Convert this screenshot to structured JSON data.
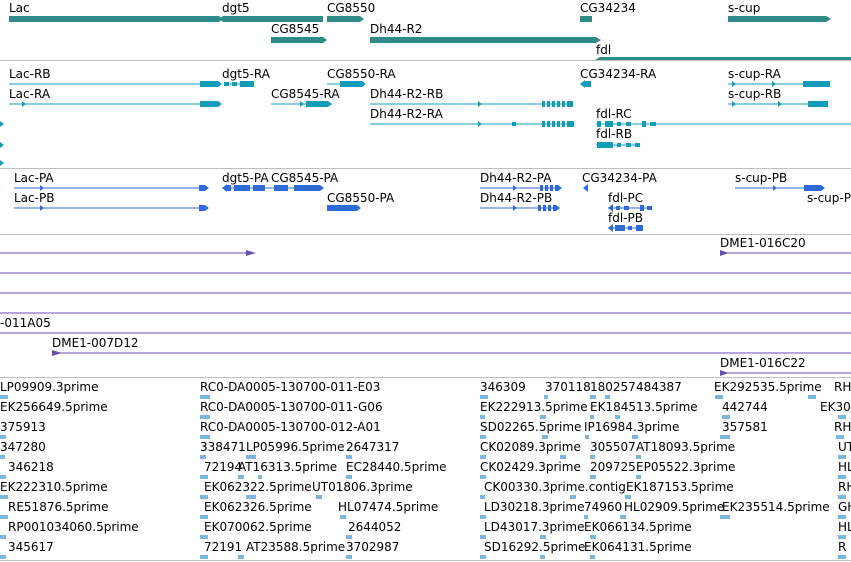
{
  "colors": {
    "gene": "#2e8b87",
    "transcript": "#129db8",
    "protein": "#2f6bd6",
    "clone": "#6a4fb2",
    "est": "#7bb6de",
    "separator": "#bfbfbf"
  },
  "tracks": {
    "genes": {
      "labels": [
        "Lac",
        "dgt5",
        "CG8550",
        "CG34234",
        "s-cup",
        "CG8545",
        "Dh44-R2",
        "fdl"
      ]
    },
    "transcripts": {
      "labels": [
        "Lac-RB",
        "dgt5-RA",
        "CG8550-RA",
        "CG34234-RA",
        "s-cup-RA",
        "Lac-RA",
        "CG8545-RA",
        "Dh44-R2-RB",
        "s-cup-RB",
        "Dh44-R2-RA",
        "fdl-RC",
        "fdl-RB"
      ]
    },
    "proteins": {
      "labels": [
        "Lac-PA",
        "dgt5-PA",
        "CG8545-PA",
        "Dh44-R2-PA",
        "CG34234-PA",
        "s-cup-PB",
        "Lac-PB",
        "CG8550-PA",
        "Dh44-R2-PB",
        "s-cup-P",
        "fdl-PC",
        "fdl-PB"
      ]
    },
    "clones": {
      "labels": [
        "DME1-016C20",
        "-011A05",
        "DME1-007D12",
        "DME1-016C22"
      ]
    },
    "ests": {
      "labels": [
        "LP09909.3prime",
        "RC0-DA0005-130700-011-E03",
        "346309",
        "370118",
        "180257",
        "484387",
        "EK292535.5prime",
        "RH",
        "EK256649.5prime",
        "RC0-DA0005-130700-011-G06",
        "EK222913.5prime",
        "EK1845",
        "13.5prime",
        "442744",
        "EK30",
        "375913",
        "RC0-DA0005-130700-012-A01",
        "SD02265.5prime",
        "IP16984.3prime",
        "357581",
        "RH",
        "347280",
        "338471",
        "LP05996.5prime",
        "2647317",
        "CK02089.3prime",
        "305507",
        "AT18093.5prime",
        "UT",
        "346218",
        "72194",
        "AT16313.5prime",
        "EC28440.5prime",
        "CK02429.3prime",
        "209725",
        "EP05522.3prime",
        "HL",
        "EK222310.5prime",
        "EK062322.5prime",
        "UT01806.3prime",
        "CK00330.3prime.contig",
        "EK187153.5prime",
        "RH",
        "RE51876.5prime",
        "EK062326.5prime",
        "HL07474.5prime",
        "LD30218.3prime",
        "74960",
        "HL02909.5prime",
        "EK235514.5prime",
        "GH",
        "RP001034060.5prime",
        "EK070062.5prime",
        "2644052",
        "LD43017.3prime",
        "EK066134.5prime",
        "HL",
        "345617",
        "72191",
        "AT23588.5prime",
        "3702987",
        "SD16292.5prime",
        "EK064131.5prime",
        "R"
      ]
    }
  }
}
